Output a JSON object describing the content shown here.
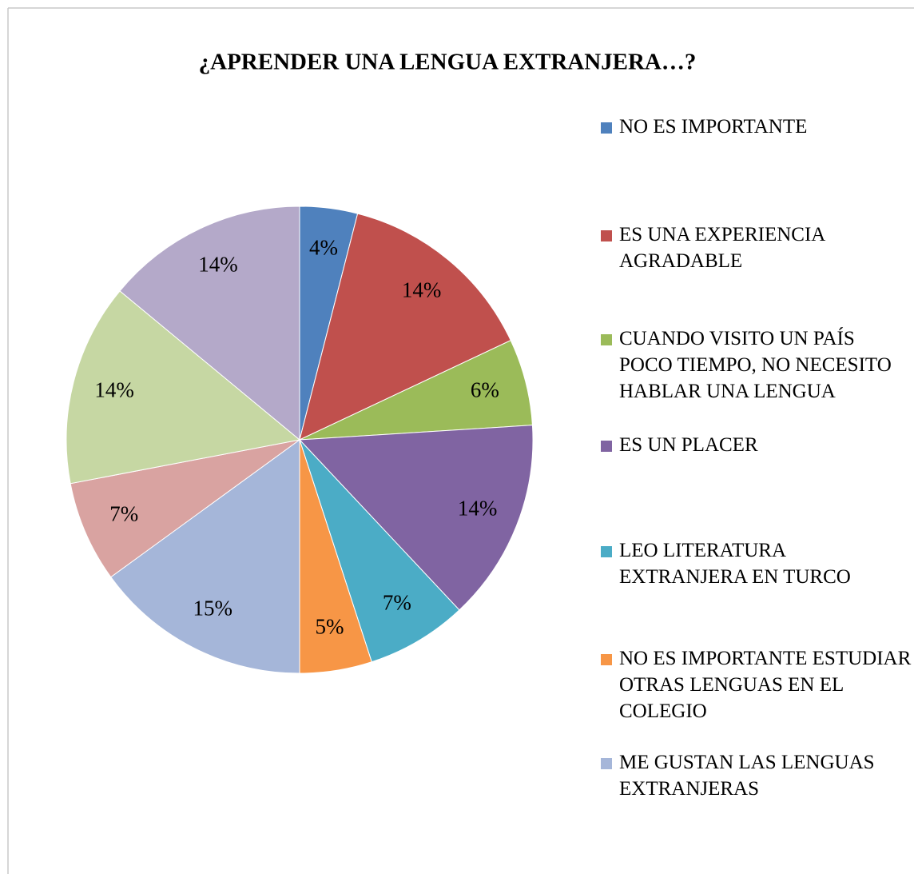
{
  "chart_data": {
    "type": "pie",
    "title": "¿APRENDER UNA LENGUA EXTRANJERA…?",
    "categories": [
      "NO ES IMPORTANTE",
      "ES UNA EXPERIENCIA AGRADABLE",
      "CUANDO VISITO UN PAÍS POCO TIEMPO, NO NECESITO HABLAR UNA LENGUA",
      "ES UN PLACER",
      "LEO LITERATURA EXTRANJERA EN TURCO",
      "NO ES IMPORTANTE ESTUDIAR OTRAS LENGUAS EN EL COLEGIO",
      "ME GUSTAN LAS LENGUAS EXTRANJERAS",
      null,
      null,
      null
    ],
    "values": [
      4,
      14,
      6,
      14,
      7,
      5,
      15,
      7,
      14,
      14
    ],
    "value_labels": [
      "4%",
      "14%",
      "6%",
      "14%",
      "7%",
      "5%",
      "15%",
      "7%",
      "14%",
      "14%"
    ],
    "colors": [
      "#4f81bd",
      "#c0504d",
      "#9bbb59",
      "#8064a2",
      "#4bacc6",
      "#f79646",
      "#a5b6d9",
      "#d9a3a1",
      "#c6d7a3",
      "#b4a9c9"
    ],
    "legend": "right"
  }
}
